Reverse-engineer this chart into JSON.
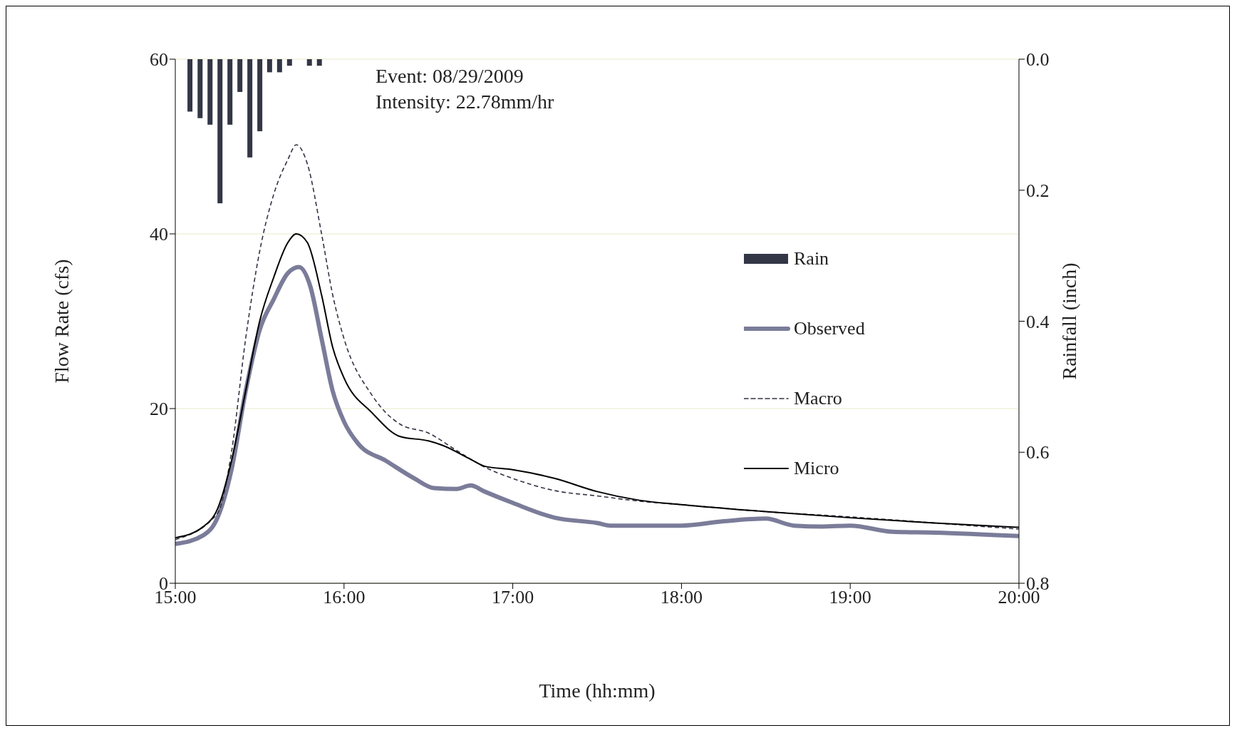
{
  "chart_data": {
    "type": "line",
    "xlabel": "Time (hh:mm)",
    "ylabel": "Flow Rate (cfs)",
    "y2label": "Rainfall (inch)",
    "annotations": [
      "Event: 08/29/2009",
      "Intensity: 22.78mm/hr"
    ],
    "xlim": [
      15,
      20
    ],
    "xticks": [
      {
        "value": 15,
        "label": "15:00"
      },
      {
        "value": 16,
        "label": "16:00"
      },
      {
        "value": 17,
        "label": "17:00"
      },
      {
        "value": 18,
        "label": "18:00"
      },
      {
        "value": 19,
        "label": "19:00"
      },
      {
        "value": 20,
        "label": "20:00"
      }
    ],
    "ylim": [
      0,
      60
    ],
    "yticks": [
      0,
      20,
      40,
      60
    ],
    "y2lim": [
      0.8,
      0.0
    ],
    "y2ticks": [
      {
        "value": 0,
        "label": "0.0"
      },
      0.2,
      0.4,
      0.6,
      0.8
    ],
    "grid": "y",
    "legend": "right",
    "series": [
      {
        "name": "Rain",
        "type": "bar",
        "axis": "y2",
        "color": "#333645",
        "x": [
          15.087,
          15.147,
          15.206,
          15.265,
          15.324,
          15.383,
          15.442,
          15.501,
          15.559,
          15.618,
          15.677,
          15.795,
          15.854
        ],
        "values": [
          0.08,
          0.09,
          0.1,
          0.22,
          0.1,
          0.05,
          0.15,
          0.11,
          0.02,
          0.02,
          0.01,
          0.01,
          0.01
        ]
      },
      {
        "name": "Observed",
        "color": "#7b7c99",
        "line_style": "solid",
        "x": [
          15,
          15.167,
          15.25,
          15.333,
          15.417,
          15.5,
          15.583,
          15.667,
          15.733,
          15.8,
          15.867,
          15.933,
          16,
          16.083,
          16.25,
          16.417,
          16.533,
          16.667,
          16.75,
          16.833,
          17,
          17.25,
          17.5,
          17.583,
          18,
          18.25,
          18.5,
          18.667,
          18.833,
          19,
          19.25,
          19.5,
          20
        ],
        "values": [
          4.5,
          5.5,
          7.5,
          13,
          22,
          29,
          32.5,
          35.5,
          36.2,
          34,
          28,
          22,
          18.5,
          16,
          14,
          12,
          10.9,
          10.8,
          11.2,
          10.5,
          9.2,
          7.5,
          6.9,
          6.6,
          6.6,
          7.1,
          7.4,
          6.6,
          6.5,
          6.6,
          5.9,
          5.8,
          5.4
        ]
      },
      {
        "name": "Macro",
        "color": "#333344",
        "line_style": "dashed",
        "x": [
          15,
          15.25,
          15.333,
          15.417,
          15.5,
          15.583,
          15.667,
          15.717,
          15.783,
          15.867,
          15.933,
          16,
          16.167,
          16.333,
          16.5,
          16.667,
          16.833,
          17,
          17.25,
          17.5,
          17.75,
          18,
          18.5,
          19,
          19.5,
          20
        ],
        "values": [
          5,
          8,
          15,
          28,
          38,
          44.5,
          48.5,
          50.2,
          48,
          40,
          33,
          28,
          21.5,
          18.2,
          17.2,
          15.2,
          13.3,
          12,
          10.6,
          10,
          9.4,
          9,
          8.2,
          7.6,
          6.9,
          6.2
        ]
      },
      {
        "name": "Micro",
        "color": "#000000",
        "line_style": "solid",
        "x": [
          15,
          15.167,
          15.25,
          15.333,
          15.417,
          15.5,
          15.583,
          15.667,
          15.717,
          15.783,
          15.867,
          15.933,
          16,
          16.167,
          16.333,
          16.5,
          16.583,
          16.75,
          16.833,
          17,
          17.25,
          17.5,
          17.75,
          18,
          18.5,
          19,
          19.5,
          20
        ],
        "values": [
          5.2,
          6.5,
          8.5,
          14,
          22,
          30,
          35,
          39,
          40,
          39,
          33,
          27,
          23.5,
          19.5,
          16.8,
          16.3,
          15.8,
          14.2,
          13.4,
          13,
          12,
          10.5,
          9.5,
          9,
          8.2,
          7.5,
          6.9,
          6.4
        ]
      }
    ]
  }
}
